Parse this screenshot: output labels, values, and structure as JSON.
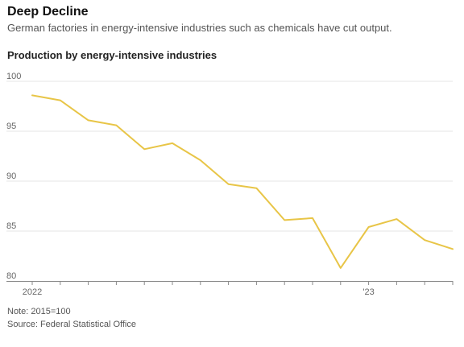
{
  "header": {
    "title": "Deep Decline",
    "subtitle": "German factories in energy-intensive industries such as chemicals have cut output."
  },
  "footer": {
    "note": "Note: 2015=100",
    "source": "Source: Federal Statistical Office"
  },
  "colors": {
    "line": "#e8c547",
    "grid": "#e6e6e6",
    "axis": "#888888"
  },
  "chart_data": {
    "type": "line",
    "title": "Production by energy-intensive industries",
    "xlabel": "",
    "ylabel": "",
    "ylim": [
      80,
      100
    ],
    "yticks": [
      80,
      85,
      90,
      95,
      100
    ],
    "xticks": [
      {
        "index": 0,
        "label": "2022"
      },
      {
        "index": 1,
        "label": ""
      },
      {
        "index": 2,
        "label": ""
      },
      {
        "index": 3,
        "label": ""
      },
      {
        "index": 4,
        "label": ""
      },
      {
        "index": 5,
        "label": ""
      },
      {
        "index": 6,
        "label": ""
      },
      {
        "index": 7,
        "label": ""
      },
      {
        "index": 8,
        "label": ""
      },
      {
        "index": 9,
        "label": ""
      },
      {
        "index": 10,
        "label": ""
      },
      {
        "index": 11,
        "label": ""
      },
      {
        "index": 12,
        "label": "'23"
      },
      {
        "index": 13,
        "label": ""
      },
      {
        "index": 14,
        "label": ""
      },
      {
        "index": 15,
        "label": ""
      }
    ],
    "x": [
      "Jan 2022",
      "Feb 2022",
      "Mar 2022",
      "Apr 2022",
      "May 2022",
      "Jun 2022",
      "Jul 2022",
      "Aug 2022",
      "Sep 2022",
      "Oct 2022",
      "Nov 2022",
      "Dec 2022",
      "Jan 2023",
      "Feb 2023",
      "Mar 2023",
      "Apr 2023"
    ],
    "values": [
      98.6,
      98.1,
      96.1,
      95.6,
      93.2,
      93.8,
      92.1,
      89.7,
      89.3,
      86.1,
      86.3,
      81.3,
      85.4,
      86.2,
      84.1,
      83.2
    ],
    "grid": true,
    "legend": "none"
  }
}
